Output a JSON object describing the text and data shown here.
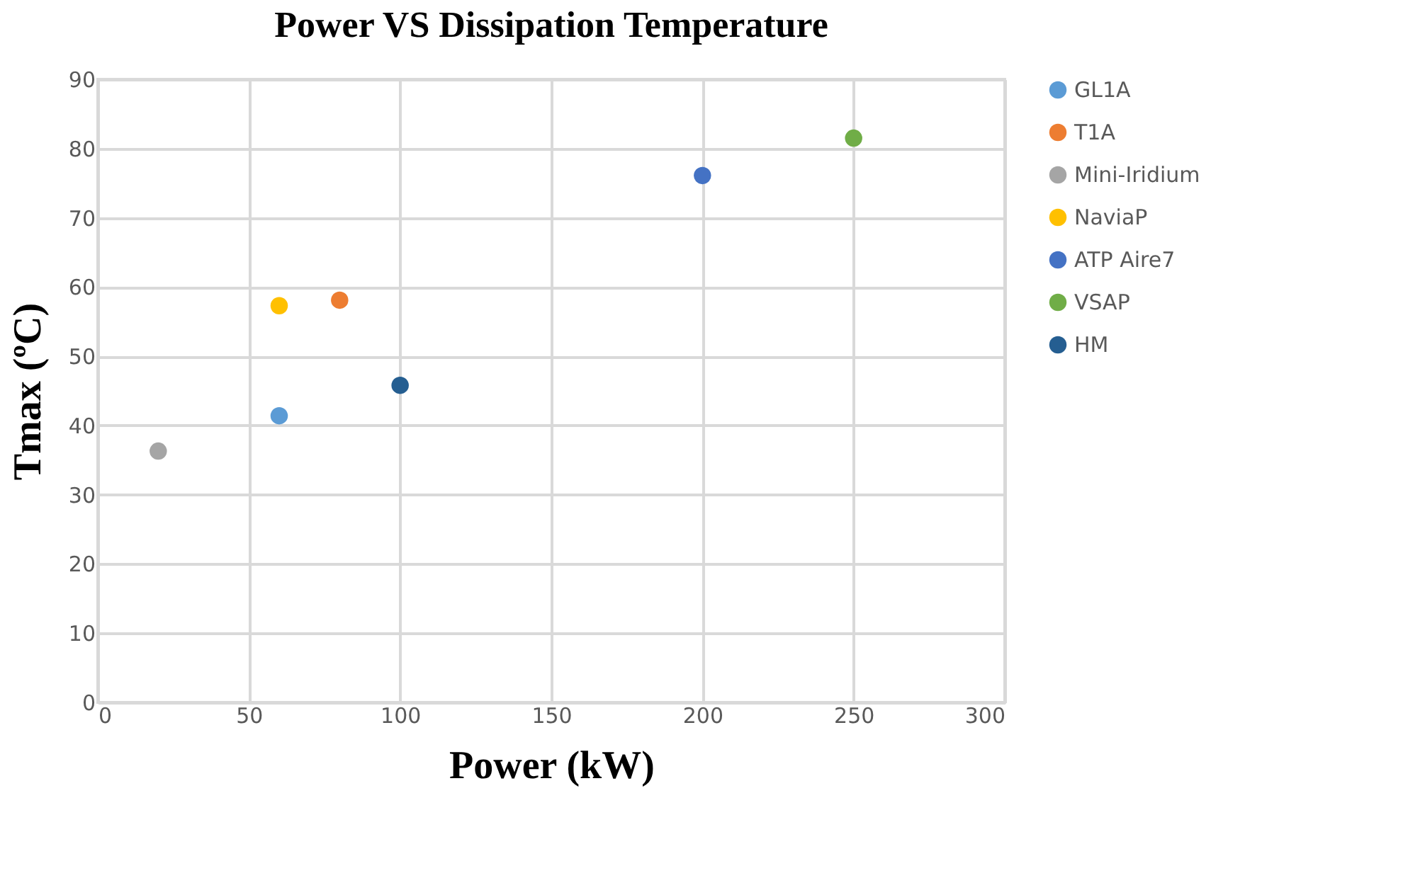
{
  "chart_data": {
    "type": "scatter",
    "title": "Power VS Dissipation Temperature",
    "xlabel": "Power (kW)",
    "ylabel": "Tmax (ºC)",
    "series": [
      {
        "name": "GL1A",
        "color": "#5b9bd5",
        "x": [
          60
        ],
        "values": [
          41.4
        ]
      },
      {
        "name": "T1A",
        "color": "#ed7d31",
        "x": [
          80
        ],
        "values": [
          58.1
        ]
      },
      {
        "name": "Mini-Iridium",
        "color": "#a5a5a5",
        "x": [
          20
        ],
        "values": [
          36.3
        ]
      },
      {
        "name": "NaviaP",
        "color": "#ffc000",
        "x": [
          60
        ],
        "values": [
          57.3
        ]
      },
      {
        "name": "ATP Aire7",
        "color": "#4472c4",
        "x": [
          200
        ],
        "values": [
          76.1
        ]
      },
      {
        "name": "VSAP",
        "color": "#70ad47",
        "x": [
          250
        ],
        "values": [
          81.5
        ]
      },
      {
        "name": "HM",
        "color": "#255e91",
        "x": [
          100
        ],
        "values": [
          45.8
        ]
      }
    ],
    "xlim": [
      0,
      300
    ],
    "xticks": [
      0,
      50,
      100,
      150,
      200,
      250,
      300
    ],
    "ylim": [
      0,
      90
    ],
    "yticks": [
      0,
      10,
      20,
      30,
      40,
      50,
      60,
      70,
      80,
      90
    ],
    "grid": true,
    "legend": "right",
    "marker": "circle"
  }
}
